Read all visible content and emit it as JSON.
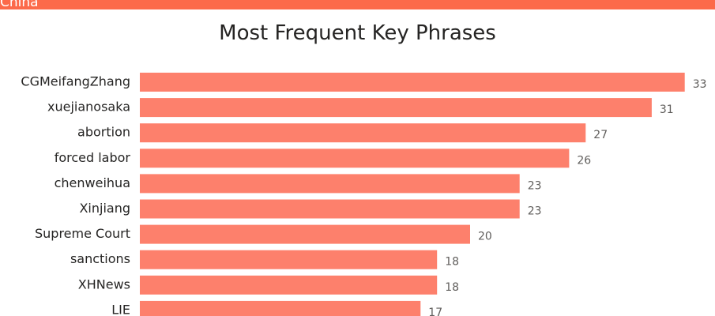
{
  "banner": {
    "label": "China",
    "color": "#fc6a4a"
  },
  "chart_data": {
    "type": "bar",
    "orientation": "horizontal",
    "title": "Most Frequent Key Phrases",
    "categories": [
      "CGMeifangZhang",
      "xuejianosaka",
      "abortion",
      "forced labor",
      "chenweihua",
      "Xinjiang",
      "Supreme Court",
      "sanctions",
      "XHNews",
      "LIE"
    ],
    "values": [
      33,
      31,
      27,
      26,
      23,
      23,
      20,
      18,
      18,
      17
    ],
    "bar_color": "#fd806c",
    "data_labels": true,
    "grid": false
  }
}
